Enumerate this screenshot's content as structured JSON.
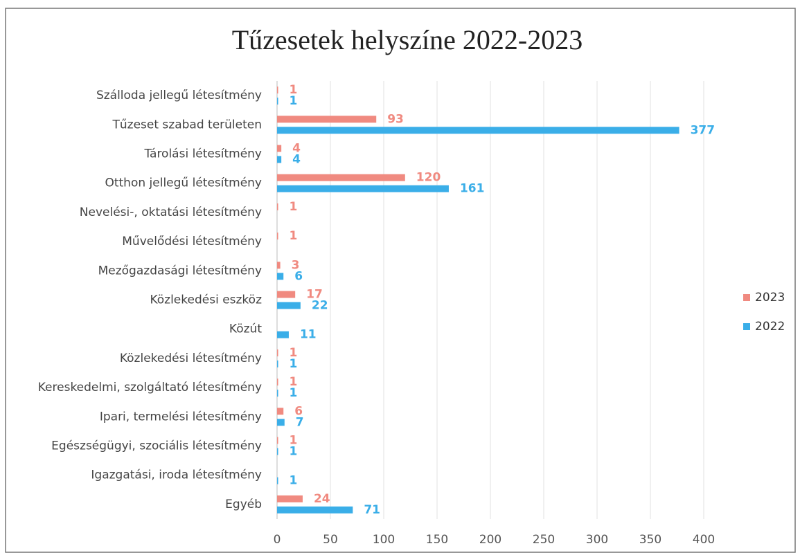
{
  "chart_data": {
    "type": "barh",
    "title": "Tűzesetek helyszíne 2022-2023",
    "categories": [
      "Szálloda jellegű létesítmény",
      "Tűzeset szabad területen",
      "Tárolási létesítmény",
      "Otthon jellegű létesítmény",
      "Nevelési-, oktatási létesítmény",
      "Művelődési létesítmény",
      "Mezőgazdasági létesítmény",
      "Közlekedési eszköz",
      "Közút",
      "Közlekedési létesítmény",
      "Kereskedelmi, szolgáltató létesítmény",
      "Ipari, termelési létesítmény",
      "Egészségügyi, szociális létesítmény",
      "Igazgatási, iroda létesítmény",
      "Egyéb"
    ],
    "series": [
      {
        "name": "2023",
        "color": "#f08a80",
        "values": [
          1,
          93,
          4,
          120,
          1,
          1,
          3,
          17,
          null,
          1,
          1,
          6,
          1,
          null,
          24
        ]
      },
      {
        "name": "2022",
        "color": "#3aaee8",
        "values": [
          1,
          377,
          4,
          161,
          null,
          null,
          6,
          22,
          11,
          1,
          1,
          7,
          1,
          1,
          71
        ]
      }
    ],
    "xlim": [
      0,
      400
    ],
    "xticks": [
      0,
      50,
      100,
      150,
      200,
      250,
      300,
      350,
      400
    ],
    "grid": true,
    "legend": "right"
  }
}
